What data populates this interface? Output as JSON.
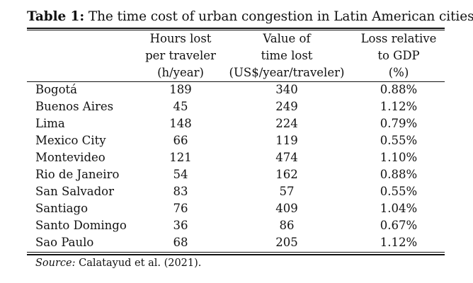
{
  "table": {
    "caption_label": "Table 1:",
    "caption_text": "The time cost of urban congestion in Latin American cities",
    "columns": [
      {
        "lines": [
          "Hours lost",
          "per traveler",
          "(h/year)"
        ]
      },
      {
        "lines": [
          "Value of",
          "time lost",
          "(US$/year/traveler)"
        ]
      },
      {
        "lines": [
          "Loss relative",
          "to GDP",
          "(%)"
        ]
      }
    ],
    "rows": [
      {
        "city": "Bogotá",
        "hours": "189",
        "value": "340",
        "gdp": "0.88%"
      },
      {
        "city": "Buenos Aires",
        "hours": "45",
        "value": "249",
        "gdp": "1.12%"
      },
      {
        "city": "Lima",
        "hours": "148",
        "value": "224",
        "gdp": "0.79%"
      },
      {
        "city": "Mexico City",
        "hours": "66",
        "value": "119",
        "gdp": "0.55%"
      },
      {
        "city": "Montevideo",
        "hours": "121",
        "value": "474",
        "gdp": "1.10%"
      },
      {
        "city": "Rio de Janeiro",
        "hours": "54",
        "value": "162",
        "gdp": "0.88%"
      },
      {
        "city": "San Salvador",
        "hours": "83",
        "value": "57",
        "gdp": "0.55%"
      },
      {
        "city": "Santiago",
        "hours": "76",
        "value": "409",
        "gdp": "1.04%"
      },
      {
        "city": "Santo Domingo",
        "hours": "36",
        "value": "86",
        "gdp": "0.67%"
      },
      {
        "city": "Sao Paulo",
        "hours": "68",
        "value": "205",
        "gdp": "1.12%"
      }
    ],
    "source_label": "Source:",
    "source_text": "Calatayud et al. (2021)."
  }
}
